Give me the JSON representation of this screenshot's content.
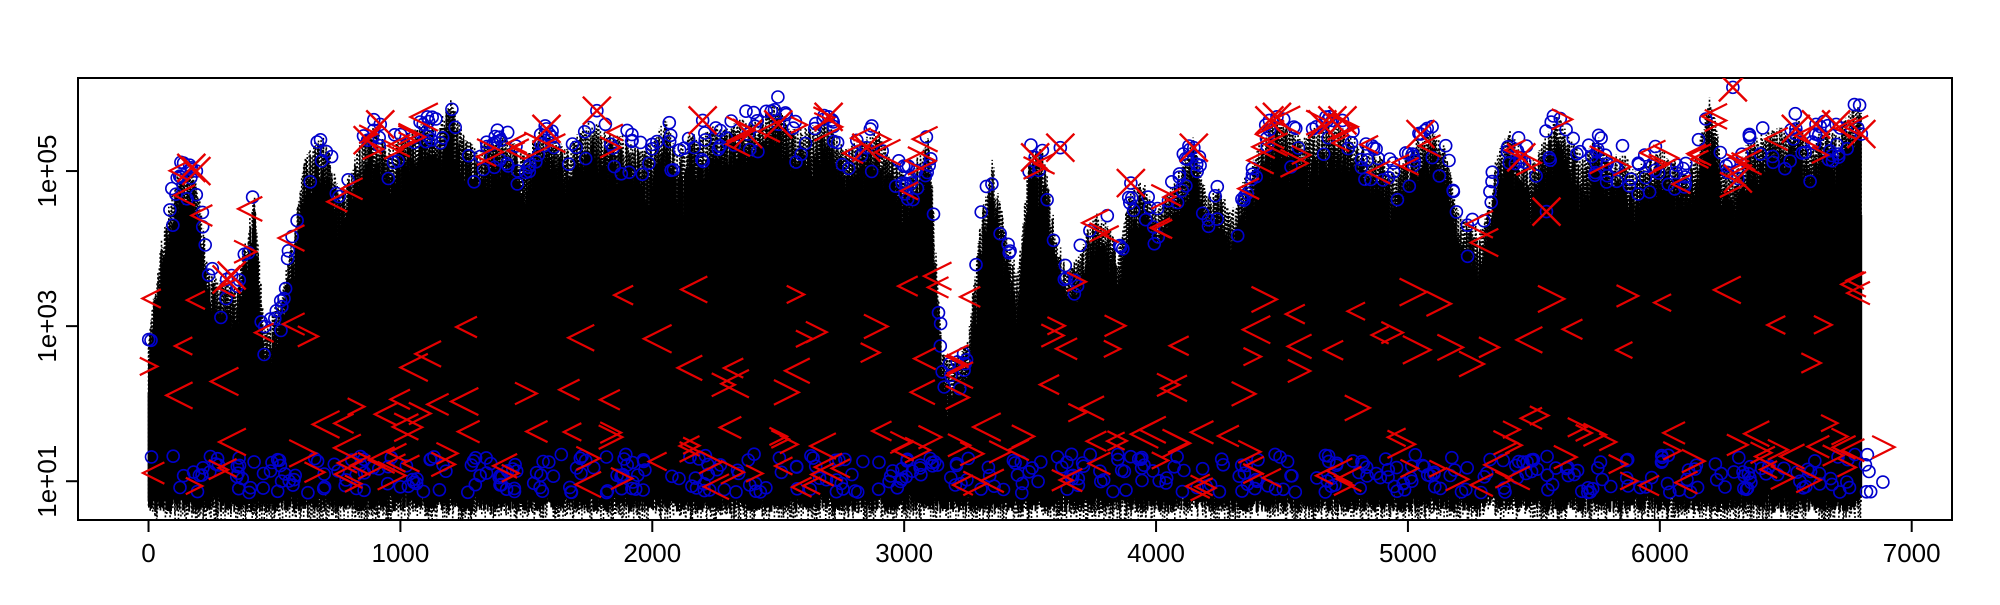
{
  "chart_data": {
    "type": "scatter",
    "title": "",
    "xlabel": "",
    "ylabel": "",
    "xlim": [
      -280,
      7160
    ],
    "ylim_log10": [
      0.5,
      6.2
    ],
    "y_scale": "log",
    "grid": false,
    "legend": "none",
    "x_ticks": [
      0,
      1000,
      2000,
      3000,
      4000,
      5000,
      6000,
      7000
    ],
    "x_tick_labels": [
      "0",
      "1000",
      "2000",
      "3000",
      "4000",
      "5000",
      "6000",
      "7000"
    ],
    "y_ticks": [
      10,
      1000,
      100000
    ],
    "y_tick_labels": [
      "1e+01",
      "1e+03",
      "1e+05"
    ],
    "peaks_description_x": [
      0,
      60,
      120,
      160,
      200,
      240,
      300,
      350,
      420,
      460,
      530,
      580,
      620,
      660,
      700,
      760,
      800,
      850,
      900,
      950,
      1000,
      1050,
      1100,
      1150,
      1200,
      1250,
      1300,
      1350,
      1400,
      1450,
      1500,
      1550,
      1600,
      1650,
      1700,
      1760,
      1800,
      1850,
      1900,
      1950,
      2000,
      2050,
      2100,
      2150,
      2200,
      2250,
      2300,
      2350,
      2400,
      2450,
      2500,
      2550,
      2600,
      2650,
      2700,
      2760,
      2800,
      2850,
      2900,
      2950,
      3000,
      3050,
      3100,
      3150,
      3200,
      3250,
      3300,
      3350,
      3400,
      3450,
      3500,
      3550,
      3600,
      3650,
      3700,
      3750,
      3800,
      3850,
      3900,
      3950,
      4000,
      4050,
      4100,
      4150,
      4200,
      4250,
      4300,
      4350,
      4400,
      4450,
      4500,
      4550,
      4600,
      4650,
      4700,
      4750,
      4800,
      4850,
      4900,
      4950,
      5000,
      5050,
      5100,
      5150,
      5200,
      5250,
      5300,
      5350,
      5400,
      5450,
      5500,
      5550,
      5600,
      5650,
      5700,
      5750,
      5800,
      5850,
      5900,
      5950,
      6000,
      6050,
      6100,
      6150,
      6200,
      6250,
      6300,
      6350,
      6400,
      6450,
      6500,
      6550,
      6600,
      6650,
      6700,
      6750,
      6800,
      6850,
      6890
    ],
    "peaks_description_y": [
      800,
      20000,
      110000,
      120000,
      60000,
      5000,
      4000,
      3000,
      60000,
      900,
      3000,
      20000,
      150000,
      250000,
      300000,
      50000,
      100000,
      300000,
      400000,
      200000,
      300000,
      350000,
      500000,
      400000,
      900000,
      300000,
      200000,
      250000,
      300000,
      250000,
      150000,
      400000,
      350000,
      200000,
      300000,
      500000,
      350000,
      300000,
      300000,
      200000,
      250000,
      500000,
      200000,
      300000,
      300000,
      400000,
      350000,
      500000,
      500000,
      600000,
      800000,
      350000,
      400000,
      400000,
      500000,
      200000,
      250000,
      300000,
      350000,
      150000,
      100000,
      150000,
      300000,
      500,
      400,
      600,
      20000,
      150000,
      20000,
      5000,
      200000,
      200000,
      20000,
      5000,
      10000,
      30000,
      25000,
      10000,
      60000,
      80000,
      30000,
      60000,
      120000,
      300000,
      50000,
      60000,
      30000,
      80000,
      200000,
      450000,
      500000,
      300000,
      300000,
      450000,
      450000,
      350000,
      250000,
      200000,
      150000,
      100000,
      200000,
      300000,
      350000,
      200000,
      30000,
      20000,
      20000,
      150000,
      350000,
      200000,
      150000,
      300000,
      600000,
      250000,
      150000,
      300000,
      150000,
      200000,
      100000,
      150000,
      200000,
      150000,
      100000,
      200000,
      1000000,
      150000,
      100000,
      250000,
      300000,
      400000,
      350000,
      500000,
      200000,
      400000,
      300000,
      600000,
      700000
    ],
    "series": [
      {
        "marker": "line",
        "color": "#000000"
      },
      {
        "marker": "circle",
        "color": "#0000cc"
      },
      {
        "marker": "x",
        "color": "#e60000"
      }
    ],
    "outliers_x": [
      170,
      190,
      310,
      330,
      870,
      920,
      1580,
      1780,
      2200,
      2380,
      2500,
      2700,
      2850,
      3520,
      3620,
      3900,
      4150,
      4450,
      4480,
      4660,
      4700,
      4740,
      5050,
      5450,
      5550,
      6290,
      6310,
      6540,
      6620,
      6700,
      6800
    ],
    "outliers_y": [
      110000,
      100000,
      4000,
      4500,
      250000,
      400000,
      350000,
      600000,
      450000,
      300000,
      400000,
      500000,
      200000,
      150000,
      200000,
      70000,
      200000,
      450000,
      500000,
      400000,
      450000,
      450000,
      300000,
      150000,
      30000,
      1200000,
      80000,
      350000,
      400000,
      400000,
      300000
    ]
  }
}
